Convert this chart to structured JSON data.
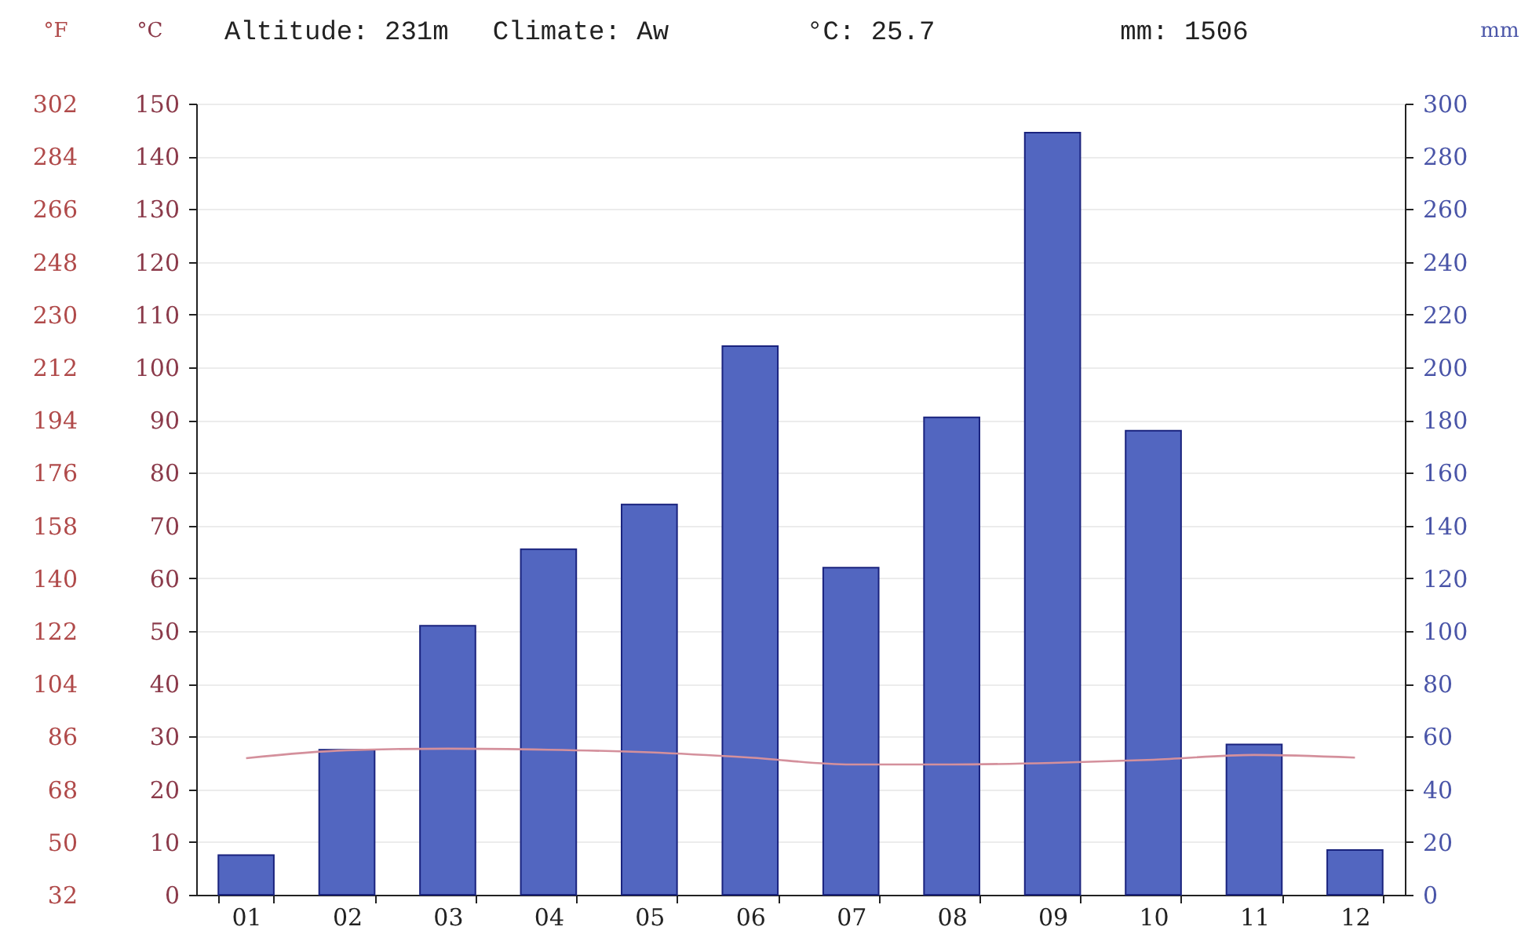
{
  "chart_data": {
    "type": "bar",
    "annotations": [
      "Altitude: 231m",
      "Climate: Aw",
      "°C: 25.7",
      "mm: 1506"
    ],
    "categories": [
      "01",
      "02",
      "03",
      "04",
      "05",
      "06",
      "07",
      "08",
      "09",
      "10",
      "11",
      "12"
    ],
    "series": [
      {
        "axis": "y2",
        "color": "#5266c0",
        "values": [
          15,
          55,
          102,
          131,
          148,
          208,
          124,
          181,
          289,
          176,
          57,
          17
        ]
      },
      {
        "type": "line",
        "axis": "y",
        "color": "#d4909c",
        "values": [
          25.9,
          27.4,
          27.7,
          27.5,
          27,
          26,
          24.7,
          24.7,
          25,
          25.6,
          26.5,
          26
        ]
      }
    ],
    "ylabel": "°C",
    "ylim": [
      0,
      150
    ],
    "yticks": [
      0,
      10,
      20,
      30,
      40,
      50,
      60,
      70,
      80,
      90,
      100,
      110,
      120,
      130,
      140,
      150
    ],
    "y2label": "mm",
    "y2lim": [
      0,
      300
    ],
    "y2ticks": [
      0,
      20,
      40,
      60,
      80,
      100,
      120,
      140,
      160,
      180,
      200,
      220,
      240,
      260,
      280,
      300
    ],
    "y3label": "°F",
    "y3lim": [
      32,
      302
    ],
    "y3ticks": [
      32,
      50,
      68,
      86,
      104,
      122,
      140,
      158,
      176,
      194,
      212,
      230,
      248,
      266,
      284,
      302
    ],
    "grid": "y"
  }
}
